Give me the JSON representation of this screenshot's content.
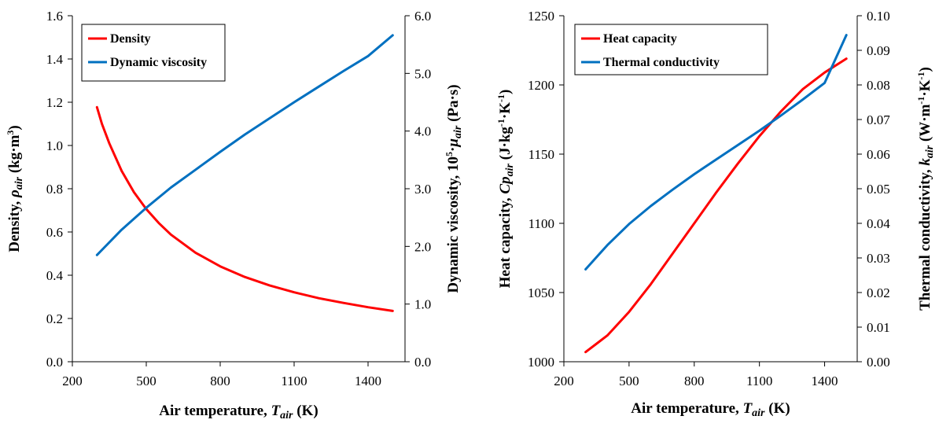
{
  "chart_data": [
    {
      "type": "line",
      "title": "",
      "x_axis": {
        "label_main": "Air temperature, ",
        "label_symbol": "T",
        "label_sub": "air",
        "label_unit": " (K)",
        "range": [
          200,
          1550
        ],
        "ticks": [
          "200",
          "500",
          "800",
          "1100",
          "1400"
        ]
      },
      "y_axis_left": {
        "label_main": "Density, ",
        "label_symbol": "ρ",
        "label_sub": "air",
        "label_unit_pre": "  (kg·m",
        "label_unit_sup": "3",
        "label_unit_post": ")",
        "range": [
          0.0,
          1.6
        ],
        "ticks": [
          "0.0",
          "0.2",
          "0.4",
          "0.6",
          "0.8",
          "1.0",
          "1.2",
          "1.4",
          "1.6"
        ]
      },
      "y_axis_right": {
        "label_main": "Dynamic viscosity, 10",
        "label_sup": "5",
        "label_mid": "·",
        "label_symbol": "μ",
        "label_sub": "air",
        "label_unit": "  (Pa·s)",
        "range": [
          0.0,
          6.0
        ],
        "ticks": [
          "0.0",
          "1.0",
          "2.0",
          "3.0",
          "4.0",
          "5.0",
          "6.0"
        ]
      },
      "legend_position": "top-left",
      "grid": false,
      "series": [
        {
          "name": "Density",
          "color": "#ff0000",
          "axis": "left",
          "x": [
            300,
            320,
            350,
            400,
            450,
            500,
            550,
            600,
            700,
            800,
            900,
            1000,
            1100,
            1200,
            1300,
            1400,
            1500
          ],
          "y": [
            1.177,
            1.1,
            1.01,
            0.882,
            0.784,
            0.706,
            0.642,
            0.588,
            0.504,
            0.441,
            0.392,
            0.353,
            0.321,
            0.294,
            0.272,
            0.252,
            0.235
          ]
        },
        {
          "name": "Dynamic viscosity",
          "color": "#0070c0",
          "axis": "right",
          "x": [
            300,
            400,
            500,
            600,
            700,
            800,
            900,
            1000,
            1100,
            1200,
            1300,
            1400,
            1500
          ],
          "y": [
            1.85,
            2.29,
            2.67,
            3.02,
            3.33,
            3.64,
            3.94,
            4.22,
            4.5,
            4.77,
            5.04,
            5.3,
            5.66
          ]
        }
      ]
    },
    {
      "type": "line",
      "title": "",
      "x_axis": {
        "label_main": "Air temperature, ",
        "label_symbol": "T",
        "label_sub": "air",
        "label_unit": " (K)",
        "range": [
          200,
          1550
        ],
        "ticks": [
          "200",
          "500",
          "800",
          "1100",
          "1400"
        ]
      },
      "y_axis_left": {
        "label_main": "Heat capacity, ",
        "label_symbol": "Cp",
        "label_sub": "air",
        "label_unit_pre": " (J·kg",
        "label_unit_sup1": "-1",
        "label_unit_mid": "·K",
        "label_unit_sup2": "-1",
        "label_unit_post": ")",
        "range": [
          1000,
          1250
        ],
        "ticks": [
          "1000",
          "1050",
          "1100",
          "1150",
          "1200",
          "1250"
        ]
      },
      "y_axis_right": {
        "label_main": "Thermal conductivity, ",
        "label_symbol": "k",
        "label_sub": "air",
        "label_unit_pre": " (W·m",
        "label_unit_sup1": "-1",
        "label_unit_mid": "·K",
        "label_unit_sup2": "-1",
        "label_unit_post": ")",
        "range": [
          0.0,
          0.1
        ],
        "ticks": [
          "0.00",
          "0.01",
          "0.02",
          "0.03",
          "0.04",
          "0.05",
          "0.06",
          "0.07",
          "0.08",
          "0.09",
          "0.10"
        ]
      },
      "legend_position": "top-left",
      "grid": false,
      "series": [
        {
          "name": "Heat capacity",
          "color": "#ff0000",
          "axis": "left",
          "x": [
            300,
            400,
            500,
            600,
            700,
            800,
            900,
            1000,
            1100,
            1200,
            1300,
            1400,
            1500
          ],
          "y": [
            1007,
            1019,
            1036,
            1056,
            1078,
            1100,
            1122,
            1143,
            1163,
            1181,
            1197,
            1209,
            1219
          ]
        },
        {
          "name": "Thermal conductivity",
          "color": "#0070c0",
          "axis": "right",
          "x": [
            300,
            400,
            500,
            600,
            700,
            800,
            900,
            1000,
            1100,
            1200,
            1300,
            1400,
            1500
          ],
          "y": [
            0.0267,
            0.0337,
            0.0398,
            0.045,
            0.0497,
            0.0542,
            0.0584,
            0.0626,
            0.0668,
            0.0712,
            0.0758,
            0.0806,
            0.0944
          ]
        }
      ]
    }
  ]
}
